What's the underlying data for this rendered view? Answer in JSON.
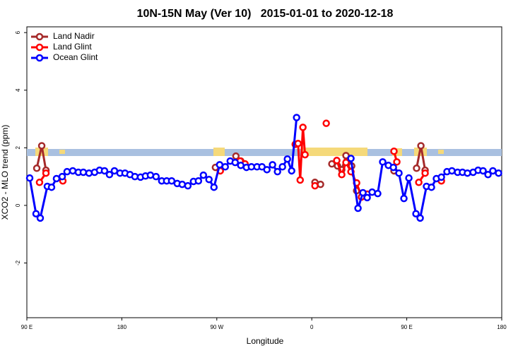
{
  "chart_data": {
    "type": "line",
    "title": "10N-15N May (Ver 10)   2015-01-01 to 2020-12-18",
    "x_label": "Longitude",
    "y_label": "XCO2 - MLO trend (ppm)",
    "xlim": [
      90,
      540
    ],
    "xticks": [
      {
        "value": 90,
        "label": "90 E"
      },
      180,
      {
        "value": 270,
        "label": "90 W"
      },
      {
        "value": 360,
        "label": "0"
      },
      {
        "value": 450,
        "label": "90 E"
      },
      {
        "value": 540,
        "label": "180"
      }
    ],
    "ylim": [
      -3.9,
      6.2
    ],
    "yticks": [
      -2,
      0,
      2,
      4,
      6
    ],
    "legend": "top-left",
    "series": [
      {
        "name": "Land Nadir",
        "color": "#a52a2a",
        "x": [
          99.4,
          104.1,
          108.1,
          null,
          268.7,
          null,
          288.1,
          292.7,
          296.8,
          null,
          363.0,
          368.3,
          null,
          379.0,
          384.4,
          388.4,
          392.4,
          397.8,
          402.5,
          null,
          437.9,
          null,
          459.3,
          463.4,
          467.4
        ],
        "values": [
          1.29,
          2.07,
          1.22,
          null,
          1.32,
          null,
          1.71,
          1.54,
          1.39,
          null,
          0.8,
          0.73,
          null,
          1.44,
          1.37,
          1.24,
          1.73,
          1.37,
          0.51,
          null,
          1.2,
          null,
          1.29,
          2.07,
          1.22
        ]
      },
      {
        "name": "Land Glint",
        "color": "#ff0000",
        "x": [
          102.0,
          108.1,
          null,
          124.1,
          null,
          273.3,
          null,
          292.1,
          296.8,
          null,
          344.3,
          347.0,
          349.0,
          351.6,
          353.6,
          null,
          363.0,
          null,
          373.7,
          null,
          383.7,
          388.4,
          392.4,
          397.1,
          402.5,
          407.1,
          412.5,
          null,
          437.9,
          440.6,
          null,
          461.4,
          467.4,
          null,
          482.8
        ],
        "values": [
          0.8,
          1.12,
          null,
          0.85,
          null,
          1.2,
          null,
          1.54,
          1.44,
          null,
          2.12,
          2.15,
          0.88,
          2.71,
          1.76,
          null,
          0.68,
          null,
          2.85,
          null,
          1.56,
          1.07,
          1.49,
          1.17,
          0.78,
          0.29,
          0.39,
          null,
          1.88,
          1.51,
          null,
          0.8,
          1.12,
          null,
          0.85
        ]
      },
      {
        "name": "Ocean Glint",
        "color": "#0000ff",
        "x": [
          92.7,
          98.7,
          102.7,
          109.4,
          113.4,
          118.1,
          123.5,
          128.1,
          133.5,
          138.8,
          143.5,
          148.9,
          154.2,
          158.9,
          163.6,
          168.3,
          173.0,
          178.3,
          183.0,
          187.7,
          192.4,
          197.7,
          202.4,
          207.1,
          212.4,
          217.8,
          222.5,
          227.2,
          232.5,
          237.2,
          242.6,
          247.9,
          252.6,
          257.3,
          262.6,
          267.3,
          272.7,
          278.0,
          282.7,
          287.4,
          292.7,
          298.1,
          302.8,
          308.1,
          312.8,
          317.5,
          322.8,
          327.5,
          332.2,
          336.9,
          340.9,
          345.6,
          null,
          397.1,
          403.8,
          408.5,
          412.5,
          417.2,
          422.5,
          427.2,
          432.6,
          437.3,
          442.6,
          447.3,
          452.0,
          458.7,
          462.7,
          468.7,
          473.4,
          478.1,
          482.8,
          488.1,
          492.8,
          498.2,
          502.8,
          507.5,
          512.9,
          517.6,
          522.3,
          527.0,
          531.6,
          537.0
        ],
        "values": [
          0.95,
          -0.29,
          -0.44,
          0.66,
          0.63,
          0.93,
          1.0,
          1.17,
          1.2,
          1.15,
          1.15,
          1.12,
          1.15,
          1.22,
          1.2,
          1.07,
          1.2,
          1.12,
          1.12,
          1.07,
          1.0,
          0.98,
          1.02,
          1.05,
          1.0,
          0.85,
          0.85,
          0.85,
          0.76,
          0.73,
          0.68,
          0.83,
          0.85,
          1.05,
          0.9,
          0.63,
          1.41,
          1.34,
          1.54,
          1.49,
          1.39,
          1.32,
          1.34,
          1.34,
          1.34,
          1.24,
          1.41,
          1.17,
          1.34,
          1.61,
          1.2,
          3.05,
          null,
          1.63,
          -0.1,
          0.44,
          0.27,
          0.46,
          0.41,
          1.51,
          1.39,
          1.32,
          1.12,
          0.24,
          0.95,
          -0.29,
          -0.44,
          0.66,
          0.63,
          0.93,
          0.98,
          1.17,
          1.2,
          1.15,
          1.15,
          1.12,
          1.15,
          1.22,
          1.2,
          1.07,
          1.2,
          1.12
        ]
      }
    ]
  }
}
